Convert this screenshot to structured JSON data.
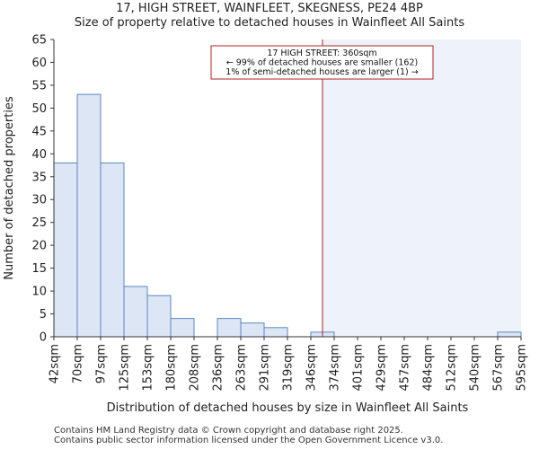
{
  "title_line1": "17, HIGH STREET, WAINFLEET, SKEGNESS, PE24 4BP",
  "title_line2": "Size of property relative to detached houses in Wainfleet All Saints",
  "footer": {
    "line1": "Contains HM Land Registry data © Crown copyright and database right 2025.",
    "line2": "Contains public sector information licensed under the Open Government Licence v3.0."
  },
  "colors": {
    "bar_fill": "#dce6f4",
    "bar_stroke": "#5b86c3",
    "highlight_fill": "#eef2fa",
    "marker_line": "#b22222",
    "annotation_border": "#b22222",
    "axis": "#333333"
  },
  "chart_data": {
    "type": "bar",
    "xlabel": "Distribution of detached houses by size in Wainfleet All Saints",
    "ylabel": "Number of detached properties",
    "ylim": [
      0,
      65
    ],
    "yticks": [
      0,
      5,
      10,
      15,
      20,
      25,
      30,
      35,
      40,
      45,
      50,
      55,
      60,
      65
    ],
    "bin_edges": [
      42,
      70,
      97,
      125,
      153,
      180,
      208,
      236,
      263,
      291,
      319,
      346,
      374,
      401,
      429,
      457,
      484,
      512,
      540,
      567,
      595
    ],
    "tick_labels": [
      "42sqm",
      "70sqm",
      "97sqm",
      "125sqm",
      "153sqm",
      "180sqm",
      "208sqm",
      "236sqm",
      "263sqm",
      "291sqm",
      "319sqm",
      "346sqm",
      "374sqm",
      "401sqm",
      "429sqm",
      "457sqm",
      "484sqm",
      "512sqm",
      "540sqm",
      "567sqm",
      "595sqm"
    ],
    "values": [
      38,
      53,
      38,
      11,
      9,
      4,
      0,
      4,
      3,
      2,
      0,
      1,
      0,
      0,
      0,
      0,
      0,
      0,
      0,
      1
    ],
    "marker_value": 360,
    "annotation": {
      "line1": "17 HIGH STREET: 360sqm",
      "line2": "← 99% of detached houses are smaller (162)",
      "line3": "1% of semi-detached houses are larger (1) →"
    }
  }
}
